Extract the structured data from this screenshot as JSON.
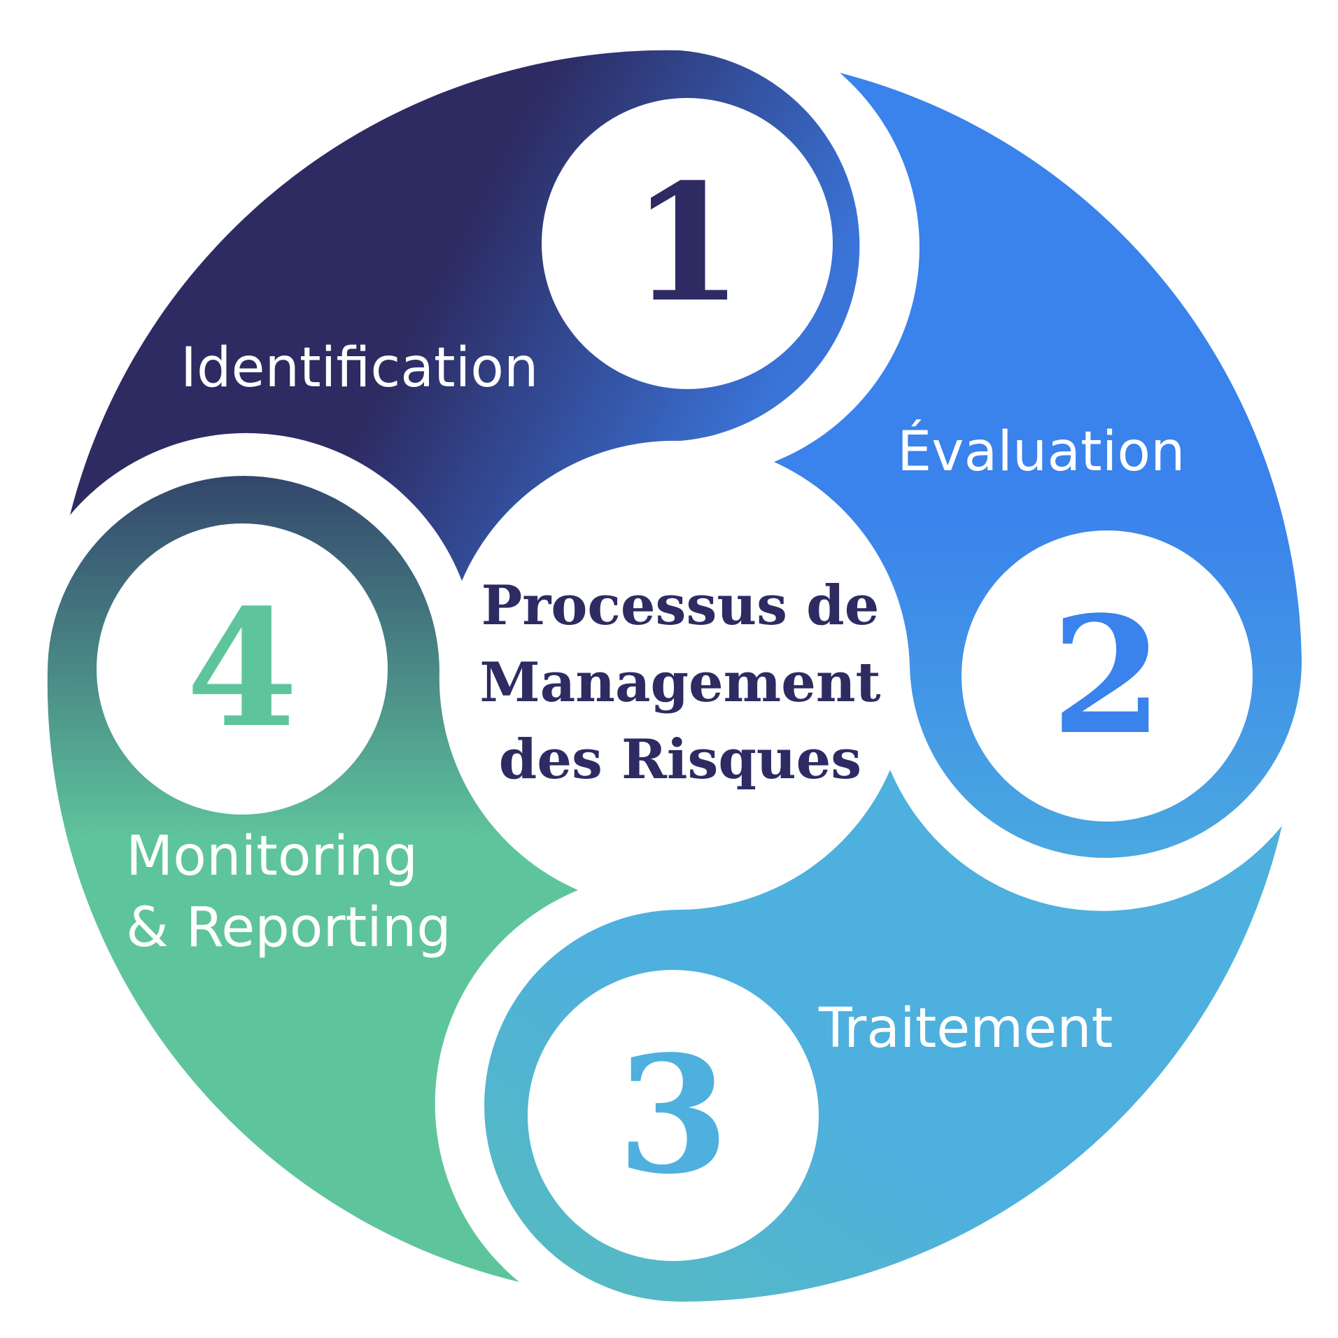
{
  "center": {
    "title_lines": [
      "Processus de",
      "Management",
      "des Risques"
    ]
  },
  "steps": [
    {
      "number": "1",
      "label_lines": [
        "Identification"
      ]
    },
    {
      "number": "2",
      "label_lines": [
        "Évaluation"
      ]
    },
    {
      "number": "3",
      "label_lines": [
        "Traitement"
      ]
    },
    {
      "number": "4",
      "label_lines": [
        "Monitoring",
        "& Reporting"
      ]
    }
  ],
  "colors": {
    "step1": "#2d2b62",
    "step1_accent": "#3a74d8",
    "step2": "#3a82ec",
    "step2_accent": "#4aa8e0",
    "step3": "#4eb0de",
    "step3_accent": "#57bcbc",
    "step4": "#5ec49c",
    "step4_accent": "#3b4f70",
    "title": "#2d2b62"
  }
}
